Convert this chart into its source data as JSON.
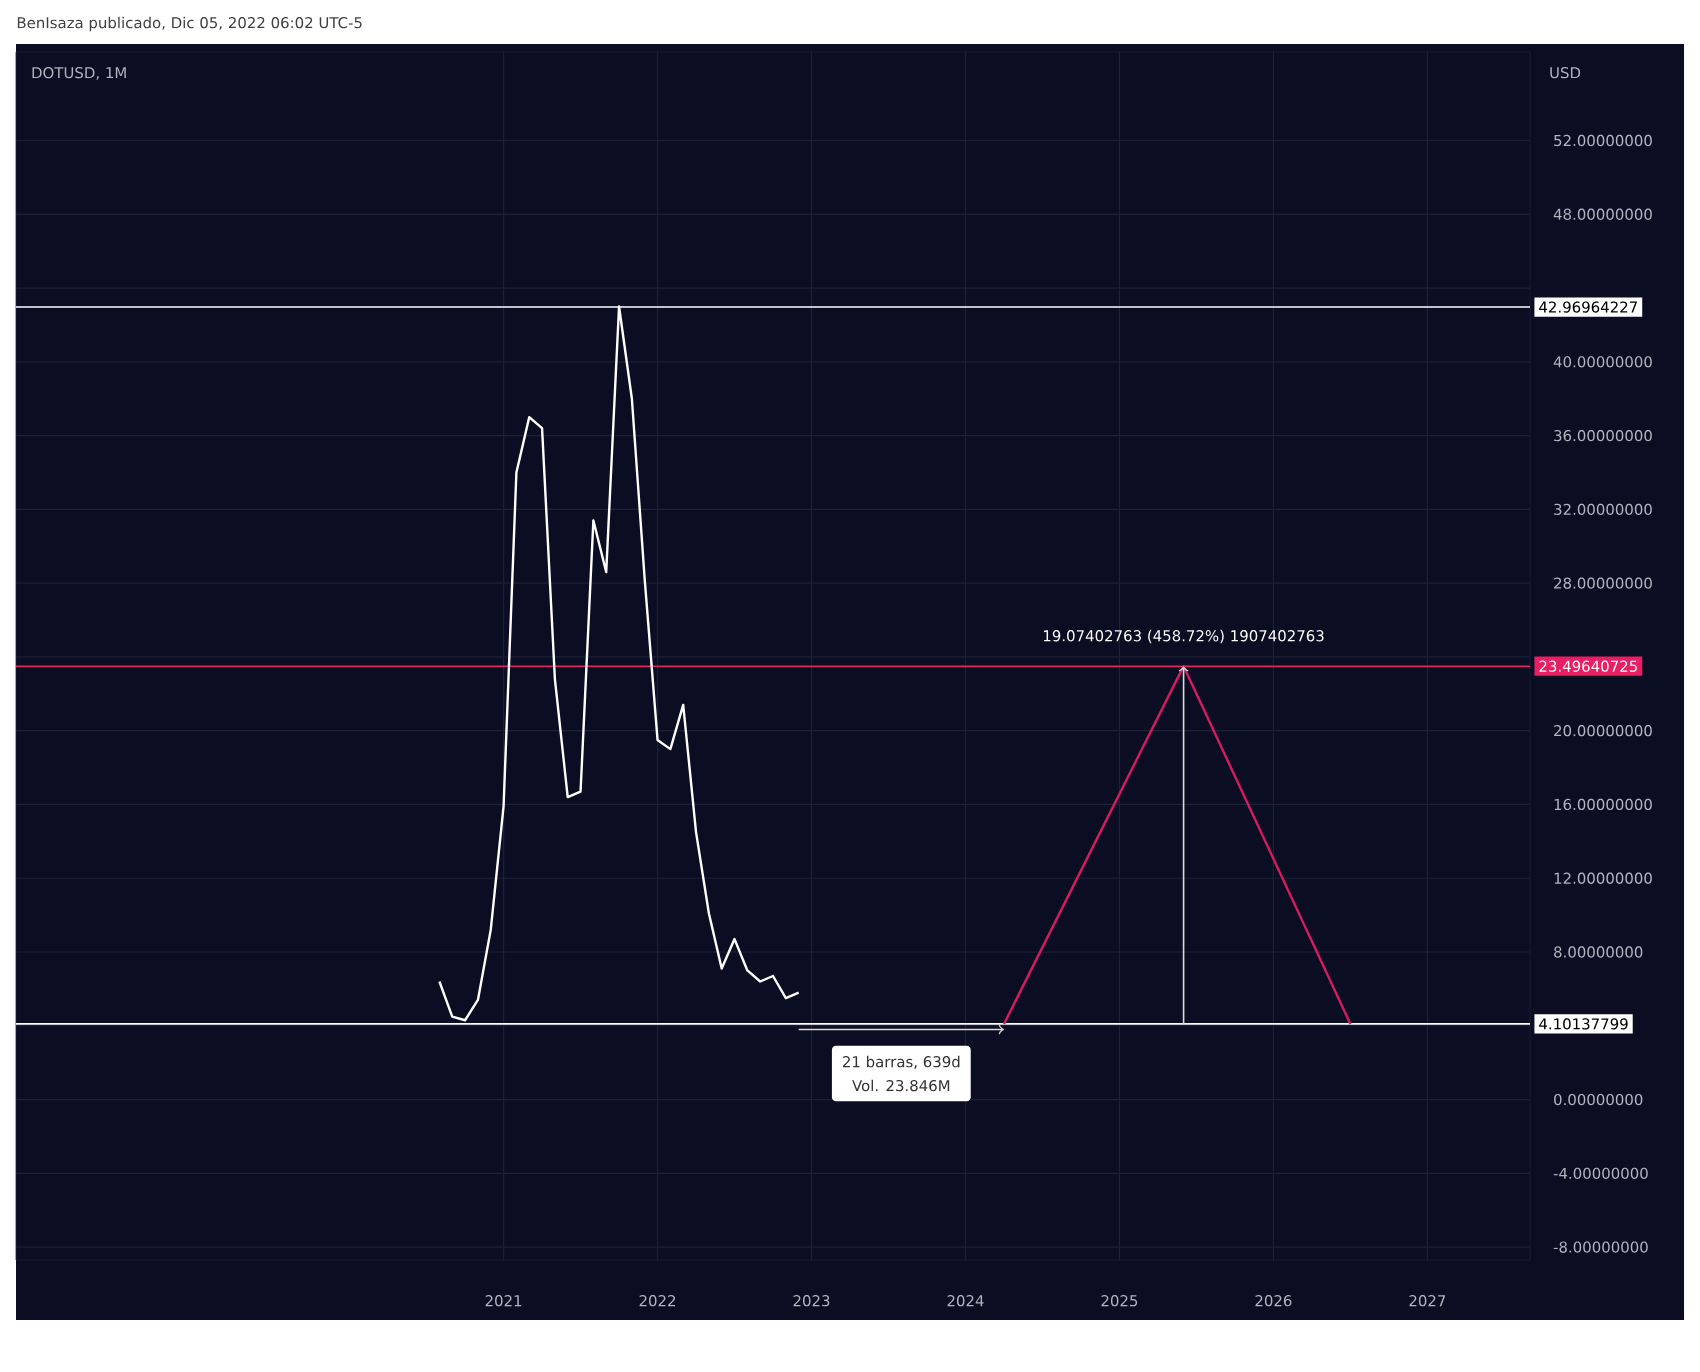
{
  "chart_data": {
    "type": "line",
    "title": "DOTUSD, 1M",
    "ylabel": "USD",
    "annotations": [
      "BenIsaza publicado, Dic 05, 2022 06:02 UTC-5",
      "21 barras, 639d",
      "Vol. 23.846M",
      "19.07402763 (458.72%) 1907402763"
    ],
    "series": [
      {
        "color": "#ffffff",
        "x": [
          "2020-08",
          "2020-09",
          "2020-10",
          "2020-11",
          "2020-12",
          "2021-01",
          "2021-02",
          "2021-03",
          "2021-04",
          "2021-05",
          "2021-06",
          "2021-07",
          "2021-08",
          "2021-09",
          "2021-10",
          "2021-11",
          "2021-12",
          "2022-01",
          "2022-02",
          "2022-03",
          "2022-04",
          "2022-05",
          "2022-06",
          "2022-07",
          "2022-08",
          "2022-09",
          "2022-10",
          "2022-11",
          "2022-12"
        ],
        "values": [
          6.4,
          4.5,
          4.3,
          5.4,
          9.2,
          15.9,
          34.0,
          37.0,
          36.4,
          22.8,
          16.4,
          16.7,
          31.4,
          28.6,
          43.0,
          38.0,
          28.2,
          19.5,
          19.0,
          21.4,
          14.5,
          10.1,
          7.1,
          8.7,
          7.0,
          6.4,
          6.7,
          5.5,
          5.8
        ]
      },
      {
        "color": "#d81b60",
        "x": [
          "2024-04",
          "2025-06",
          "2026-07"
        ],
        "values": [
          4.1,
          23.5,
          4.1
        ]
      }
    ],
    "ref_lines": [
      {
        "axis": "y",
        "value": 42.96964227,
        "label": "42.96964227",
        "color": "#ffffff"
      },
      {
        "axis": "y",
        "value": 23.49640725,
        "label": "23.49640725",
        "color": "#e91e63"
      },
      {
        "axis": "y",
        "value": 4.10137799,
        "label": "4.10137799",
        "color": "#ffffff"
      }
    ],
    "xlim": [
      "2017-11",
      "2027-09"
    ],
    "ylim": [
      -8.7,
      56.8
    ],
    "xticks": [
      "2021",
      "2022",
      "2023",
      "2024",
      "2025",
      "2026",
      "2027"
    ],
    "yticks": [
      {
        "value": 52,
        "label": "52.00000000"
      },
      {
        "value": 48,
        "label": "48.00000000"
      },
      {
        "value": 44,
        "label": null
      },
      {
        "value": 40,
        "label": "40.00000000"
      },
      {
        "value": 36,
        "label": "36.00000000"
      },
      {
        "value": 32,
        "label": "32.00000000"
      },
      {
        "value": 28,
        "label": "28.00000000"
      },
      {
        "value": 24,
        "label": null
      },
      {
        "value": 20,
        "label": "20.00000000"
      },
      {
        "value": 16,
        "label": "16.00000000"
      },
      {
        "value": 12,
        "label": "12.00000000"
      },
      {
        "value": 8,
        "label": "8.00000000"
      },
      {
        "value": 4,
        "label": null
      },
      {
        "value": 0,
        "label": "0.00000000"
      },
      {
        "value": -4,
        "label": "-4.00000000"
      },
      {
        "value": -8,
        "label": "-8.00000000"
      }
    ],
    "grid": true
  }
}
